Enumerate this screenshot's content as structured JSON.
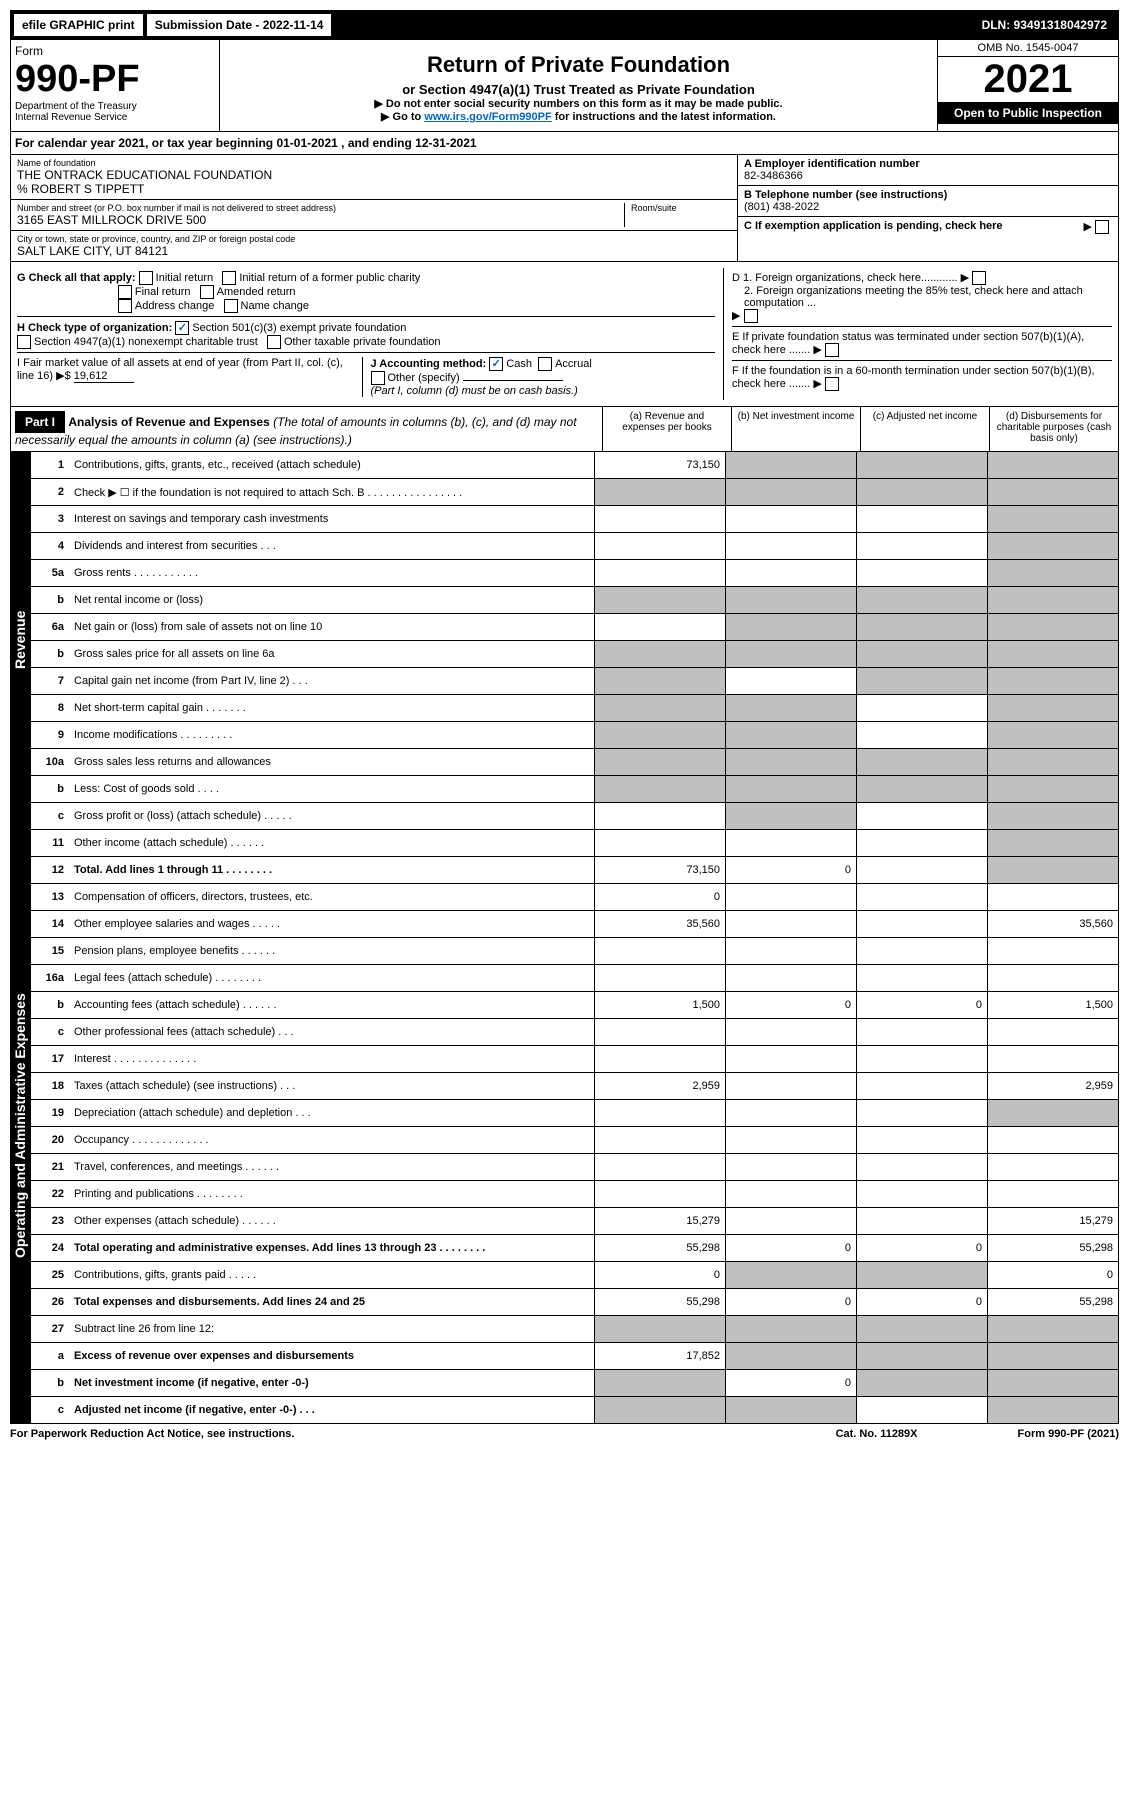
{
  "topbar": {
    "efile": "efile GRAPHIC print",
    "sub_label": "Submission Date - 2022-11-14",
    "dln": "DLN: 93491318042972"
  },
  "header": {
    "form": "Form",
    "num": "990-PF",
    "dept": "Department of the Treasury",
    "irs": "Internal Revenue Service",
    "title": "Return of Private Foundation",
    "subtitle": "or Section 4947(a)(1) Trust Treated as Private Foundation",
    "note1": "▶ Do not enter social security numbers on this form as it may be made public.",
    "note2_pre": "▶ Go to ",
    "note2_link": "www.irs.gov/Form990PF",
    "note2_post": " for instructions and the latest information.",
    "omb": "OMB No. 1545-0047",
    "year": "2021",
    "open": "Open to Public Inspection"
  },
  "calyear": "For calendar year 2021, or tax year beginning 01-01-2021          , and ending 12-31-2021",
  "info": {
    "name_label": "Name of foundation",
    "name": "THE ONTRACK EDUCATIONAL FOUNDATION",
    "care": "% ROBERT S TIPPETT",
    "addr_label": "Number and street (or P.O. box number if mail is not delivered to street address)",
    "addr": "3165 EAST MILLROCK DRIVE 500",
    "room_label": "Room/suite",
    "city_label": "City or town, state or province, country, and ZIP or foreign postal code",
    "city": "SALT LAKE CITY, UT  84121",
    "a_label": "A Employer identification number",
    "a_val": "82-3486366",
    "b_label": "B Telephone number (see instructions)",
    "b_val": "(801) 438-2022",
    "c_label": "C If exemption application is pending, check here"
  },
  "g": {
    "label": "G Check all that apply:",
    "opts": [
      "Initial return",
      "Initial return of a former public charity",
      "Final return",
      "Amended return",
      "Address change",
      "Name change"
    ]
  },
  "h": {
    "label": "H Check type of organization:",
    "opt1": "Section 501(c)(3) exempt private foundation",
    "opt2": "Section 4947(a)(1) nonexempt charitable trust",
    "opt3": "Other taxable private foundation"
  },
  "d": {
    "d1": "D 1. Foreign organizations, check here............",
    "d2": "2. Foreign organizations meeting the 85% test, check here and attach computation ..."
  },
  "e": "E  If private foundation status was terminated under section 507(b)(1)(A), check here .......",
  "i": {
    "label": "I Fair market value of all assets at end of year (from Part II, col. (c), line 16) ▶$ ",
    "val": "19,612"
  },
  "j": {
    "label": "J Accounting method:",
    "cash": "Cash",
    "accrual": "Accrual",
    "other": "Other (specify)",
    "note": "(Part I, column (d) must be on cash basis.)"
  },
  "f": "F  If the foundation is in a 60-month termination under section 507(b)(1)(B), check here .......",
  "part1": {
    "label": "Part I",
    "title": "Analysis of Revenue and Expenses",
    "note": " (The total of amounts in columns (b), (c), and (d) may not necessarily equal the amounts in column (a) (see instructions).)",
    "col_a": "(a)   Revenue and expenses per books",
    "col_b": "(b)   Net investment income",
    "col_c": "(c)   Adjusted net income",
    "col_d": "(d)  Disbursements for charitable purposes (cash basis only)"
  },
  "sidelabels": {
    "rev": "Revenue",
    "exp": "Operating and Administrative Expenses"
  },
  "rows": [
    {
      "n": "1",
      "d": "Contributions, gifts, grants, etc., received (attach schedule)",
      "a": "73,150",
      "b": "shaded",
      "c": "shaded",
      "dcol": "shaded"
    },
    {
      "n": "2",
      "d": "Check ▶ ☐ if the foundation is not required to attach Sch. B   .  .  .  .  .  .  .  .  .  .  .  .  .  .  .  .",
      "a": "shaded",
      "b": "shaded",
      "c": "shaded",
      "dcol": "shaded"
    },
    {
      "n": "3",
      "d": "Interest on savings and temporary cash investments",
      "a": "",
      "b": "",
      "c": "",
      "dcol": "shaded"
    },
    {
      "n": "4",
      "d": "Dividends and interest from securities   .  .  .",
      "a": "",
      "b": "",
      "c": "",
      "dcol": "shaded"
    },
    {
      "n": "5a",
      "d": "Gross rents   .  .  .  .  .  .  .  .  .  .  .",
      "a": "",
      "b": "",
      "c": "",
      "dcol": "shaded"
    },
    {
      "n": "b",
      "d": "Net rental income or (loss)",
      "a": "shaded",
      "b": "shaded",
      "c": "shaded",
      "dcol": "shaded"
    },
    {
      "n": "6a",
      "d": "Net gain or (loss) from sale of assets not on line 10",
      "a": "",
      "b": "shaded",
      "c": "shaded",
      "dcol": "shaded"
    },
    {
      "n": "b",
      "d": "Gross sales price for all assets on line 6a",
      "a": "shaded",
      "b": "shaded",
      "c": "shaded",
      "dcol": "shaded"
    },
    {
      "n": "7",
      "d": "Capital gain net income (from Part IV, line 2)   .  .  .",
      "a": "shaded",
      "b": "",
      "c": "shaded",
      "dcol": "shaded"
    },
    {
      "n": "8",
      "d": "Net short-term capital gain   .  .  .  .  .  .  .",
      "a": "shaded",
      "b": "shaded",
      "c": "",
      "dcol": "shaded"
    },
    {
      "n": "9",
      "d": "Income modifications   .  .  .  .  .  .  .  .  .",
      "a": "shaded",
      "b": "shaded",
      "c": "",
      "dcol": "shaded"
    },
    {
      "n": "10a",
      "d": "Gross sales less returns and allowances",
      "a": "shaded",
      "b": "shaded",
      "c": "shaded",
      "dcol": "shaded"
    },
    {
      "n": "b",
      "d": "Less: Cost of goods sold   .  .  .  .",
      "a": "shaded",
      "b": "shaded",
      "c": "shaded",
      "dcol": "shaded"
    },
    {
      "n": "c",
      "d": "Gross profit or (loss) (attach schedule)   .  .  .  .  .",
      "a": "",
      "b": "shaded",
      "c": "",
      "dcol": "shaded"
    },
    {
      "n": "11",
      "d": "Other income (attach schedule)   .  .  .  .  .  .",
      "a": "",
      "b": "",
      "c": "",
      "dcol": "shaded"
    },
    {
      "n": "12",
      "d": "Total. Add lines 1 through 11   .  .  .  .  .  .  .  .",
      "bold": true,
      "a": "73,150",
      "b": "0",
      "c": "",
      "dcol": "shaded"
    },
    {
      "n": "13",
      "d": "Compensation of officers, directors, trustees, etc.",
      "a": "0",
      "b": "",
      "c": "",
      "dcol": ""
    },
    {
      "n": "14",
      "d": "Other employee salaries and wages   .  .  .  .  .",
      "a": "35,560",
      "b": "",
      "c": "",
      "dcol": "35,560"
    },
    {
      "n": "15",
      "d": "Pension plans, employee benefits   .  .  .  .  .  .",
      "a": "",
      "b": "",
      "c": "",
      "dcol": ""
    },
    {
      "n": "16a",
      "d": "Legal fees (attach schedule)   .  .  .  .  .  .  .  .",
      "a": "",
      "b": "",
      "c": "",
      "dcol": ""
    },
    {
      "n": "b",
      "d": "Accounting fees (attach schedule)   .  .  .  .  .  .",
      "a": "1,500",
      "b": "0",
      "c": "0",
      "dcol": "1,500"
    },
    {
      "n": "c",
      "d": "Other professional fees (attach schedule)   .  .  .",
      "a": "",
      "b": "",
      "c": "",
      "dcol": ""
    },
    {
      "n": "17",
      "d": "Interest   .  .  .  .  .  .  .  .  .  .  .  .  .  .",
      "a": "",
      "b": "",
      "c": "",
      "dcol": ""
    },
    {
      "n": "18",
      "d": "Taxes (attach schedule) (see instructions)   .  .  .",
      "a": "2,959",
      "b": "",
      "c": "",
      "dcol": "2,959"
    },
    {
      "n": "19",
      "d": "Depreciation (attach schedule) and depletion   .  .  .",
      "a": "",
      "b": "",
      "c": "",
      "dcol": "shaded"
    },
    {
      "n": "20",
      "d": "Occupancy   .  .  .  .  .  .  .  .  .  .  .  .  .",
      "a": "",
      "b": "",
      "c": "",
      "dcol": ""
    },
    {
      "n": "21",
      "d": "Travel, conferences, and meetings   .  .  .  .  .  .",
      "a": "",
      "b": "",
      "c": "",
      "dcol": ""
    },
    {
      "n": "22",
      "d": "Printing and publications   .  .  .  .  .  .  .  .",
      "a": "",
      "b": "",
      "c": "",
      "dcol": ""
    },
    {
      "n": "23",
      "d": "Other expenses (attach schedule)   .  .  .  .  .  .",
      "a": "15,279",
      "b": "",
      "c": "",
      "dcol": "15,279"
    },
    {
      "n": "24",
      "d": "Total operating and administrative expenses. Add lines 13 through 23   .  .  .  .  .  .  .  .",
      "bold": true,
      "a": "55,298",
      "b": "0",
      "c": "0",
      "dcol": "55,298"
    },
    {
      "n": "25",
      "d": "Contributions, gifts, grants paid   .  .  .  .  .",
      "a": "0",
      "b": "shaded",
      "c": "shaded",
      "dcol": "0"
    },
    {
      "n": "26",
      "d": "Total expenses and disbursements. Add lines 24 and 25",
      "bold": true,
      "a": "55,298",
      "b": "0",
      "c": "0",
      "dcol": "55,298"
    },
    {
      "n": "27",
      "d": "Subtract line 26 from line 12:",
      "a": "shaded",
      "b": "shaded",
      "c": "shaded",
      "dcol": "shaded"
    },
    {
      "n": "a",
      "d": "Excess of revenue over expenses and disbursements",
      "bold": true,
      "a": "17,852",
      "b": "shaded",
      "c": "shaded",
      "dcol": "shaded"
    },
    {
      "n": "b",
      "d": "Net investment income (if negative, enter -0-)",
      "bold": true,
      "a": "shaded",
      "b": "0",
      "c": "shaded",
      "dcol": "shaded"
    },
    {
      "n": "c",
      "d": "Adjusted net income (if negative, enter -0-)   .  .  .",
      "bold": true,
      "a": "shaded",
      "b": "shaded",
      "c": "",
      "dcol": "shaded"
    }
  ],
  "footer": {
    "left": "For Paperwork Reduction Act Notice, see instructions.",
    "mid": "Cat. No. 11289X",
    "right": "Form 990-PF (2021)"
  }
}
